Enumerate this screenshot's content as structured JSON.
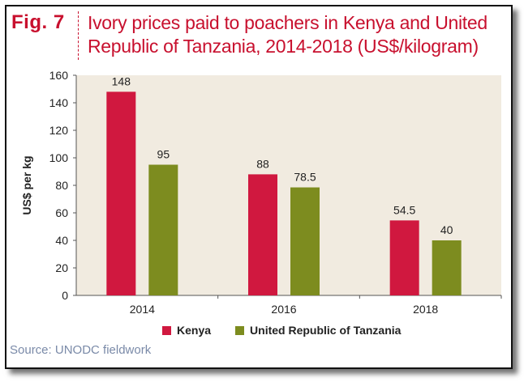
{
  "figure": {
    "label": "Fig. 7",
    "title_line1": "Ivory prices paid to poachers in Kenya and United",
    "title_line2": "Republic of Tanzania, 2014-2018 (US$/kilogram)",
    "source": "Source: UNODC fieldwork"
  },
  "colors": {
    "accent": "#c8102e",
    "kenya": "#d0183f",
    "tanzania": "#7d8c1f",
    "plot_bg": "#f1ebe0"
  },
  "chart_data": {
    "type": "bar",
    "title": "Ivory prices paid to poachers in Kenya and United Republic of Tanzania, 2014-2018 (US$/kilogram)",
    "xlabel": "",
    "ylabel": "US$ per kg",
    "categories": [
      "2014",
      "2016",
      "2018"
    ],
    "series": [
      {
        "name": "Kenya",
        "values": [
          148,
          88,
          54.5
        ],
        "labels": [
          "148",
          "88",
          "54.5"
        ]
      },
      {
        "name": "United Republic of Tanzania",
        "values": [
          95,
          78.5,
          40
        ],
        "labels": [
          "95",
          "78.5",
          "40"
        ]
      }
    ],
    "ylim": [
      0,
      160
    ],
    "yticks": [
      "0",
      "20",
      "40",
      "60",
      "80",
      "100",
      "120",
      "140",
      "160"
    ],
    "grid": false,
    "legend": "bottom"
  }
}
